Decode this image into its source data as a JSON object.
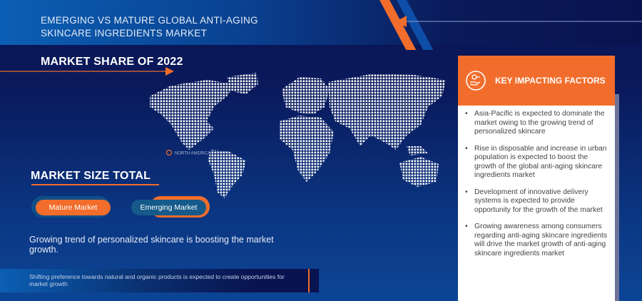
{
  "header": {
    "title_line1": "EMERGING VS MATURE GLOBAL ANTI-AGING",
    "title_line2": "SKINCARE INGREDIENTS MARKET"
  },
  "market_share": {
    "heading": "MARKET SHARE OF 2022",
    "map_label": "NORTH AMERICA"
  },
  "market_size": {
    "heading": "MARKET SIZE TOTAL",
    "legend": [
      {
        "label": "Mature Market",
        "color": "#f26d2b"
      },
      {
        "label": "Emerging Market",
        "color": "#155a8a"
      }
    ]
  },
  "growth_text": "Growing trend of personalized skincare is boosting the market growth.",
  "opportunity_text": "Shifting preference towards natural and organic products is expected to create opportunities for market growth",
  "key_factors": {
    "heading": "KEY IMPACTING FACTORS",
    "icon": "hand-with-coin-icon",
    "items": [
      "Asia-Pacific is expected to dominate the market owing to the growing trend of personalized skincare",
      "Rise in disposable and increase in urban population is expected to boost the growth of the global anti-aging skincare ingredients market",
      "Development of innovative delivery systems is expected to provide opportunity for the growth of the market",
      "Growing awareness among consumers regarding anti-aging skincare ingredients will drive the market growth of anti-aging skincare ingredients market"
    ]
  },
  "colors": {
    "accent": "#f26d2b",
    "navy": "#0a1352",
    "blue": "#0b5fb4"
  }
}
